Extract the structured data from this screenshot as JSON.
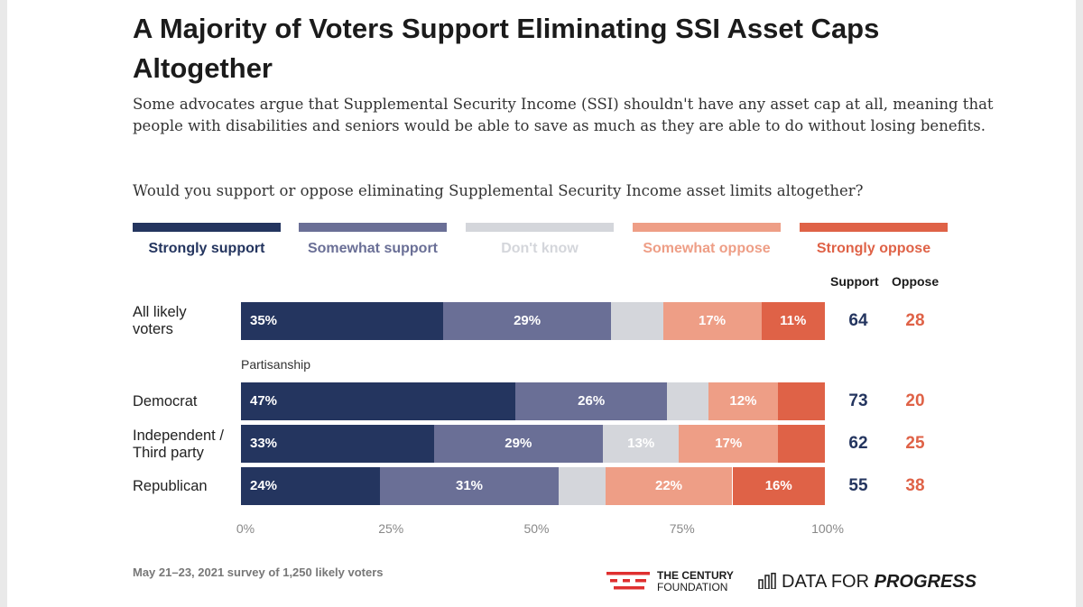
{
  "title": "A Majority of Voters Support Eliminating SSI Asset Caps Altogether",
  "subtitle": "Some advocates argue that Supplemental Security Income (SSI) shouldn't have any asset cap at all, meaning that people with disabilities and seniors would be able to save as much as they are able to do without losing benefits.",
  "question": "Would you support or oppose eliminating Supplemental Security Income asset limits altogether?",
  "colors": {
    "strongly_support": "#24355f",
    "somewhat_support": "#6a6f96",
    "dont_know": "#d4d6db",
    "somewhat_oppose": "#ee9e86",
    "strongly_oppose": "#df6247",
    "support_text": "#24355f",
    "oppose_text": "#df6247"
  },
  "legend": [
    {
      "label": "Strongly support",
      "color": "#24355f",
      "text_color": "#24355f"
    },
    {
      "label": "Somewhat support",
      "color": "#6a6f96",
      "text_color": "#6a6f96"
    },
    {
      "label": "Don't know",
      "color": "#d4d6db",
      "text_color": "#d4d6db"
    },
    {
      "label": "Somewhat oppose",
      "color": "#ee9e86",
      "text_color": "#ee9e86"
    },
    {
      "label": "Strongly oppose",
      "color": "#df6247",
      "text_color": "#df6247"
    }
  ],
  "columns": {
    "support": "Support",
    "oppose": "Oppose"
  },
  "group_label": "Partisanship",
  "footnote": "May 21–23, 2021 survey of 1,250 likely voters",
  "logos": {
    "tcf_line1": "THE CENTURY",
    "tcf_line2": "FOUNDATION",
    "dfp_prefix": "DATA FOR ",
    "dfp_suffix": "PROGRESS"
  },
  "chart_data": {
    "type": "bar",
    "orientation": "horizontal",
    "stacked": true,
    "xlim": [
      0,
      100
    ],
    "x_ticks": [
      "0%",
      "25%",
      "50%",
      "75%",
      "100%"
    ],
    "legend_position": "top",
    "series_names": [
      "Strongly support",
      "Somewhat support",
      "Don't know",
      "Somewhat oppose",
      "Strongly oppose"
    ],
    "rows": [
      {
        "label": "All likely voters",
        "values": [
          35,
          29,
          9,
          17,
          11
        ],
        "labels": [
          "35%",
          "29%",
          "",
          "17%",
          "11%"
        ],
        "support": "64",
        "oppose": "28"
      },
      {
        "label": "Democrat",
        "values": [
          47,
          26,
          7,
          12,
          8
        ],
        "labels": [
          "47%",
          "26%",
          "",
          "12%",
          ""
        ],
        "support": "73",
        "oppose": "20"
      },
      {
        "label": "Independent / Third party",
        "values": [
          33,
          29,
          13,
          17,
          8
        ],
        "labels": [
          "33%",
          "29%",
          "13%",
          "17%",
          ""
        ],
        "support": "62",
        "oppose": "25"
      },
      {
        "label": "Republican",
        "values": [
          24,
          31,
          8,
          22,
          16
        ],
        "labels": [
          "24%",
          "31%",
          "",
          "22%",
          "16%"
        ],
        "support": "55",
        "oppose": "38"
      }
    ]
  }
}
